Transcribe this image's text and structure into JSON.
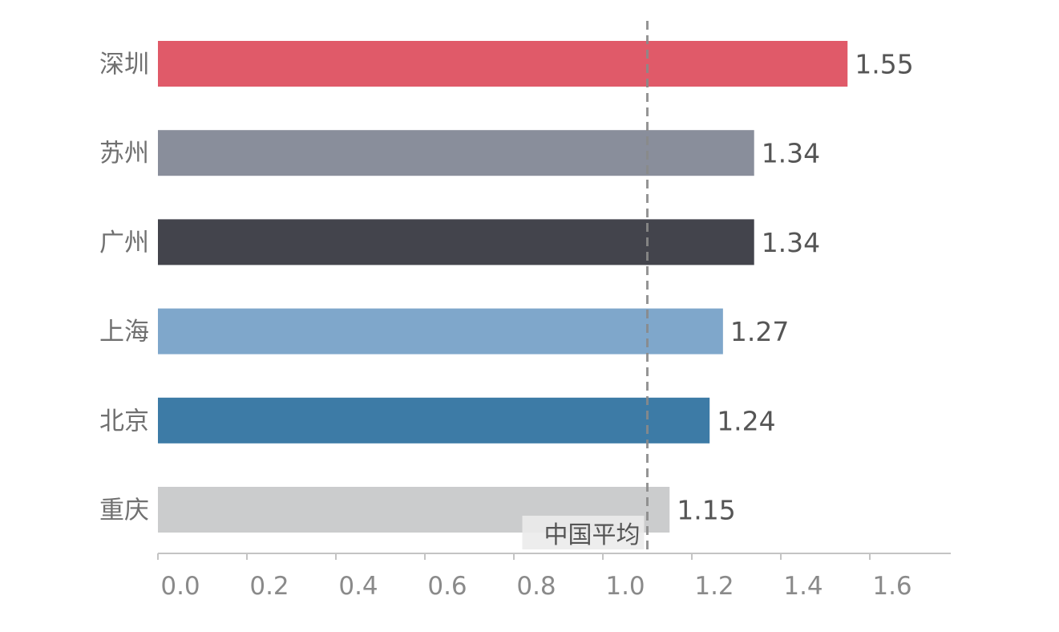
{
  "chart_data": {
    "type": "bar",
    "orientation": "horizontal",
    "categories": [
      "深圳",
      "苏州",
      "广州",
      "上海",
      "北京",
      "重庆"
    ],
    "values": [
      1.55,
      1.34,
      1.34,
      1.27,
      1.24,
      1.15
    ],
    "value_labels": [
      "1.55",
      "1.34",
      "1.34",
      "1.27",
      "1.24",
      "1.15"
    ],
    "colors": [
      "#e05a69",
      "#898e9b",
      "#43444c",
      "#7fa7cb",
      "#3d7ba6",
      "#cbcccd"
    ],
    "x_ticks": [
      0.0,
      0.2,
      0.4,
      0.6,
      0.8,
      1.0,
      1.2,
      1.4,
      1.6
    ],
    "x_tick_labels": [
      "0.0",
      "0.2",
      "0.4",
      "0.6",
      "0.8",
      "1.0",
      "1.2",
      "1.4",
      "1.6"
    ],
    "xlim": [
      0,
      1.8
    ],
    "grid": false,
    "reference_line": {
      "value": 1.1,
      "label": "中国平均",
      "style": "dashed",
      "color": "#999999"
    },
    "title": "",
    "xlabel": "",
    "ylabel": ""
  }
}
